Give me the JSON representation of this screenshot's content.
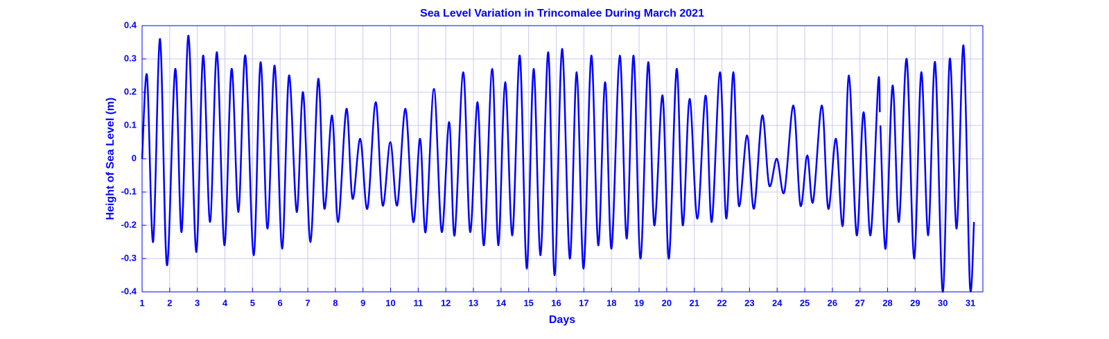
{
  "chart_data": {
    "type": "line",
    "title": "Sea Level Variation in Trincomalee During March 2021",
    "x_label": "Days",
    "y_label": "Height of Sea Level (m)",
    "xlim": [
      1,
      31.45
    ],
    "ylim": [
      -0.4,
      0.4
    ],
    "xticks": [
      1,
      2,
      3,
      4,
      5,
      6,
      7,
      8,
      9,
      10,
      11,
      12,
      13,
      14,
      15,
      16,
      17,
      18,
      19,
      20,
      21,
      22,
      23,
      24,
      25,
      26,
      27,
      28,
      29,
      30,
      31
    ],
    "yticks": [
      -0.4,
      -0.3,
      -0.2,
      -0.1,
      0,
      0.1,
      0.2,
      0.3,
      0.4
    ],
    "grid": true,
    "x": [
      1,
      1.18,
      1.4,
      1.65,
      1.9,
      2.2,
      2.43,
      2.68,
      2.96,
      3.21,
      3.46,
      3.71,
      3.98,
      4.24,
      4.49,
      4.74,
      5.04,
      5.29,
      5.54,
      5.8,
      6.07,
      6.32,
      6.6,
      6.83,
      7.1,
      7.38,
      7.6,
      7.88,
      8.1,
      8.4,
      8.62,
      8.9,
      9.16,
      9.46,
      9.71,
      9.99,
      10.24,
      10.54,
      10.82,
      11.07,
      11.27,
      11.57,
      11.85,
      12.12,
      12.32,
      12.63,
      12.88,
      13.15,
      13.38,
      13.68,
      13.9,
      14.15,
      14.41,
      14.68,
      14.93,
      15.18,
      15.43,
      15.71,
      15.94,
      16.21,
      16.49,
      16.74,
      16.99,
      17.27,
      17.52,
      17.77,
      18.0,
      18.3,
      18.55,
      18.8,
      19.05,
      19.33,
      19.55,
      19.85,
      20.08,
      20.36,
      20.58,
      20.83,
      21.11,
      21.41,
      21.63,
      21.93,
      22.16,
      22.41,
      22.61,
      22.91,
      23.16,
      23.46,
      23.71,
      23.99,
      24.26,
      24.59,
      24.84,
      25.09,
      25.3,
      25.62,
      25.85,
      26.13,
      26.38,
      26.6,
      26.88,
      27.13,
      27.38,
      27.66,
      27.72,
      27.73,
      27.74,
      27.93,
      28.18,
      28.41,
      28.69,
      28.96,
      29.22,
      29.47,
      29.72,
      30.0,
      30.25,
      30.5,
      30.75,
      30.98,
      31.13
    ],
    "series": [
      {
        "name": "Sea level",
        "color": "#0000ff",
        "values": [
          0.0,
          0.25,
          -0.25,
          0.36,
          -0.32,
          0.27,
          -0.22,
          0.37,
          -0.28,
          0.31,
          -0.19,
          0.32,
          -0.26,
          0.27,
          -0.16,
          0.31,
          -0.29,
          0.29,
          -0.21,
          0.28,
          -0.27,
          0.25,
          -0.16,
          0.2,
          -0.25,
          0.24,
          -0.15,
          0.13,
          -0.19,
          0.15,
          -0.12,
          0.06,
          -0.15,
          0.17,
          -0.14,
          0.05,
          -0.14,
          0.15,
          -0.19,
          0.06,
          -0.22,
          0.21,
          -0.22,
          0.11,
          -0.23,
          0.26,
          -0.22,
          0.17,
          -0.26,
          0.27,
          -0.26,
          0.23,
          -0.23,
          0.31,
          -0.33,
          0.27,
          -0.29,
          0.32,
          -0.35,
          0.33,
          -0.3,
          0.26,
          -0.33,
          0.31,
          -0.26,
          0.23,
          -0.27,
          0.31,
          -0.24,
          0.31,
          -0.3,
          0.29,
          -0.2,
          0.19,
          -0.3,
          0.27,
          -0.2,
          0.18,
          -0.18,
          0.19,
          -0.19,
          0.26,
          -0.18,
          0.26,
          -0.14,
          0.07,
          -0.15,
          0.13,
          -0.08,
          0.0,
          -0.1,
          0.16,
          -0.14,
          0.01,
          -0.13,
          0.16,
          -0.15,
          0.06,
          -0.2,
          0.25,
          -0.23,
          0.14,
          -0.23,
          0.23,
          0.14,
          null,
          0.1,
          -0.27,
          0.22,
          -0.19,
          0.3,
          -0.3,
          0.26,
          -0.23,
          0.29,
          -0.4,
          0.3,
          -0.21,
          0.34,
          -0.38,
          -0.19
        ]
      }
    ]
  }
}
